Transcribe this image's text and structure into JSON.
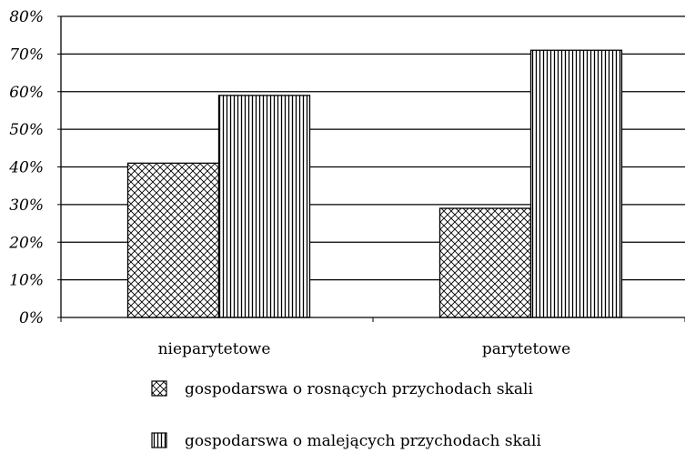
{
  "chart_data": {
    "type": "bar",
    "title": "",
    "xlabel": "",
    "ylabel": "",
    "categories": [
      "nieparytetowe",
      "parytetowe"
    ],
    "series": [
      {
        "name": "gospodarswa o rosnących przychodach skali",
        "values": [
          41,
          29
        ],
        "pattern": "crosshatch"
      },
      {
        "name": "gospodarswa o malejących przychodach skali",
        "values": [
          59,
          71
        ],
        "pattern": "vertical-lines"
      }
    ],
    "ylim": [
      0,
      80
    ],
    "yticks": [
      0,
      10,
      20,
      30,
      40,
      50,
      60,
      70,
      80
    ],
    "ytick_labels": [
      "0%",
      "10%",
      "20%",
      "30%",
      "40%",
      "50%",
      "60%",
      "70%",
      "80%"
    ],
    "grid": true,
    "legend_position": "bottom",
    "colors": {
      "bar_fill": "#ffffff",
      "ink": "#000000"
    }
  }
}
